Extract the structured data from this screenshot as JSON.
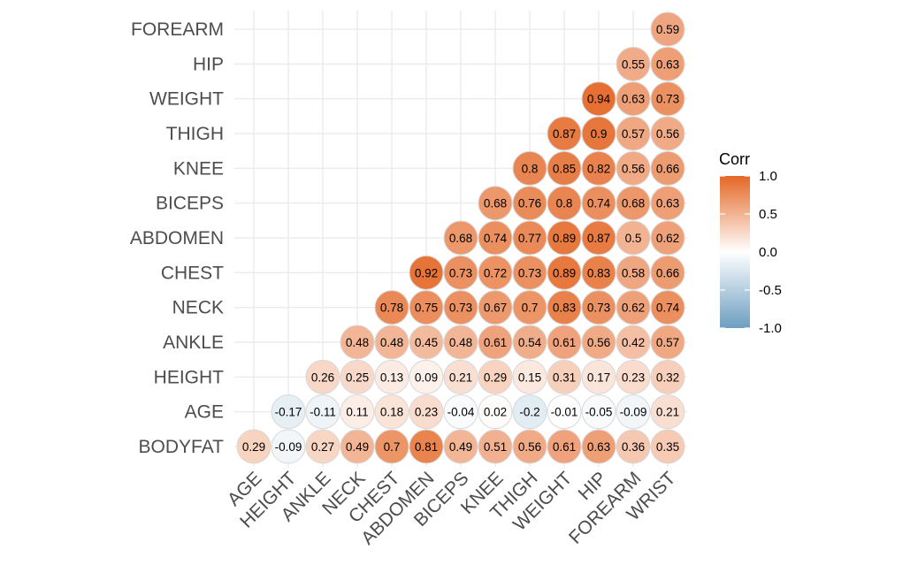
{
  "chart_data": {
    "type": "heatmap",
    "variables_x": [
      "AGE",
      "HEIGHT",
      "ANKLE",
      "NECK",
      "CHEST",
      "ABDOMEN",
      "BICEPS",
      "KNEE",
      "THIGH",
      "WEIGHT",
      "HIP",
      "FOREARM",
      "WRIST"
    ],
    "variables_y": [
      "BODYFAT",
      "AGE",
      "HEIGHT",
      "ANKLE",
      "NECK",
      "CHEST",
      "ABDOMEN",
      "BICEPS",
      "KNEE",
      "THIGH",
      "WEIGHT",
      "HIP",
      "FOREARM"
    ],
    "rows": [
      {
        "y": "BODYFAT",
        "values": [
          0.29,
          -0.09,
          0.27,
          0.49,
          0.7,
          0.81,
          0.49,
          0.51,
          0.56,
          0.61,
          0.63,
          0.36,
          0.35
        ]
      },
      {
        "y": "AGE",
        "values": [
          null,
          -0.17,
          -0.11,
          0.11,
          0.18,
          0.23,
          -0.04,
          0.02,
          -0.2,
          -0.01,
          -0.05,
          -0.09,
          0.21
        ]
      },
      {
        "y": "HEIGHT",
        "values": [
          null,
          null,
          0.26,
          0.25,
          0.13,
          0.09,
          0.21,
          0.29,
          0.15,
          0.31,
          0.17,
          0.23,
          0.32
        ]
      },
      {
        "y": "ANKLE",
        "values": [
          null,
          null,
          null,
          0.48,
          0.48,
          0.45,
          0.48,
          0.61,
          0.54,
          0.61,
          0.56,
          0.42,
          0.57
        ]
      },
      {
        "y": "NECK",
        "values": [
          null,
          null,
          null,
          null,
          0.78,
          0.75,
          0.73,
          0.67,
          0.7,
          0.83,
          0.73,
          0.62,
          0.74
        ]
      },
      {
        "y": "CHEST",
        "values": [
          null,
          null,
          null,
          null,
          null,
          0.92,
          0.73,
          0.72,
          0.73,
          0.89,
          0.83,
          0.58,
          0.66
        ]
      },
      {
        "y": "ABDOMEN",
        "values": [
          null,
          null,
          null,
          null,
          null,
          null,
          0.68,
          0.74,
          0.77,
          0.89,
          0.87,
          0.5,
          0.62
        ]
      },
      {
        "y": "BICEPS",
        "values": [
          null,
          null,
          null,
          null,
          null,
          null,
          null,
          0.68,
          0.76,
          0.8,
          0.74,
          0.68,
          0.63
        ]
      },
      {
        "y": "KNEE",
        "values": [
          null,
          null,
          null,
          null,
          null,
          null,
          null,
          null,
          0.8,
          0.85,
          0.82,
          0.56,
          0.66
        ]
      },
      {
        "y": "THIGH",
        "values": [
          null,
          null,
          null,
          null,
          null,
          null,
          null,
          null,
          null,
          0.87,
          0.9,
          0.57,
          0.56
        ]
      },
      {
        "y": "WEIGHT",
        "values": [
          null,
          null,
          null,
          null,
          null,
          null,
          null,
          null,
          null,
          null,
          0.94,
          0.63,
          0.73
        ]
      },
      {
        "y": "HIP",
        "values": [
          null,
          null,
          null,
          null,
          null,
          null,
          null,
          null,
          null,
          null,
          null,
          0.55,
          0.63
        ]
      },
      {
        "y": "FOREARM",
        "values": [
          null,
          null,
          null,
          null,
          null,
          null,
          null,
          null,
          null,
          null,
          null,
          null,
          0.59
        ]
      }
    ],
    "color_scale": {
      "low": "#6d9ec1",
      "mid": "#ffffff",
      "high": "#e46726",
      "limits": [
        -1,
        1
      ]
    },
    "grid": true,
    "legend": {
      "title": "Corr",
      "placement": "right",
      "ticks": [
        1.0,
        0.5,
        0.0,
        -0.5,
        -1.0
      ],
      "tick_labels": [
        "1.0",
        "0.5",
        "0.0",
        "-0.5",
        "-1.0"
      ]
    }
  }
}
